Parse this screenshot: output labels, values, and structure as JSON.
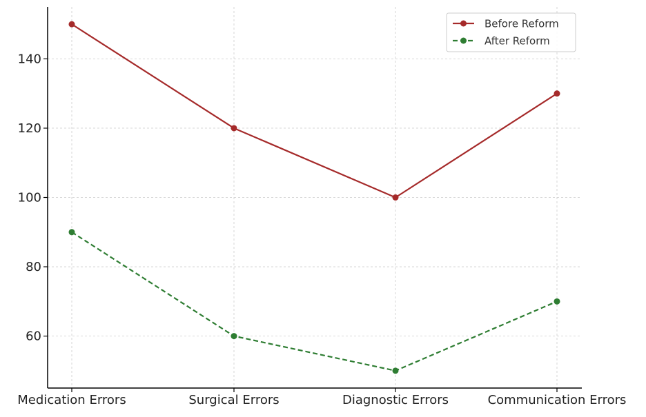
{
  "chart_data": {
    "type": "line",
    "title": "",
    "xlabel": "",
    "ylabel": "",
    "categories": [
      "Medication Errors",
      "Surgical Errors",
      "Diagnostic Errors",
      "Communication Errors"
    ],
    "series": [
      {
        "name": "Before Reform",
        "values": [
          150,
          120,
          100,
          130
        ],
        "color": "#a52a2a",
        "line_style": "solid",
        "marker": "circle"
      },
      {
        "name": "After Reform",
        "values": [
          90,
          60,
          50,
          70
        ],
        "color": "#2e7d32",
        "line_style": "dashed",
        "marker": "circle"
      }
    ],
    "ylim": [
      45,
      155
    ],
    "yticks": [
      60,
      80,
      100,
      120,
      140
    ],
    "grid": true,
    "legend_position": "top-right"
  }
}
